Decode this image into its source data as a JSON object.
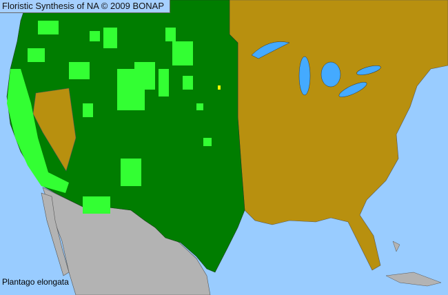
{
  "title": "Floristic Synthesis of NA © 2009 BONAP",
  "species": "Plantago elongata",
  "colors": {
    "ocean": "#99ccff",
    "present_county": "#007d00",
    "present_native": "#33ff33",
    "absent": "#b8900f",
    "outside_range": "#b3b3b3",
    "lakes": "#44aaff",
    "rare": "#ffff00"
  }
}
